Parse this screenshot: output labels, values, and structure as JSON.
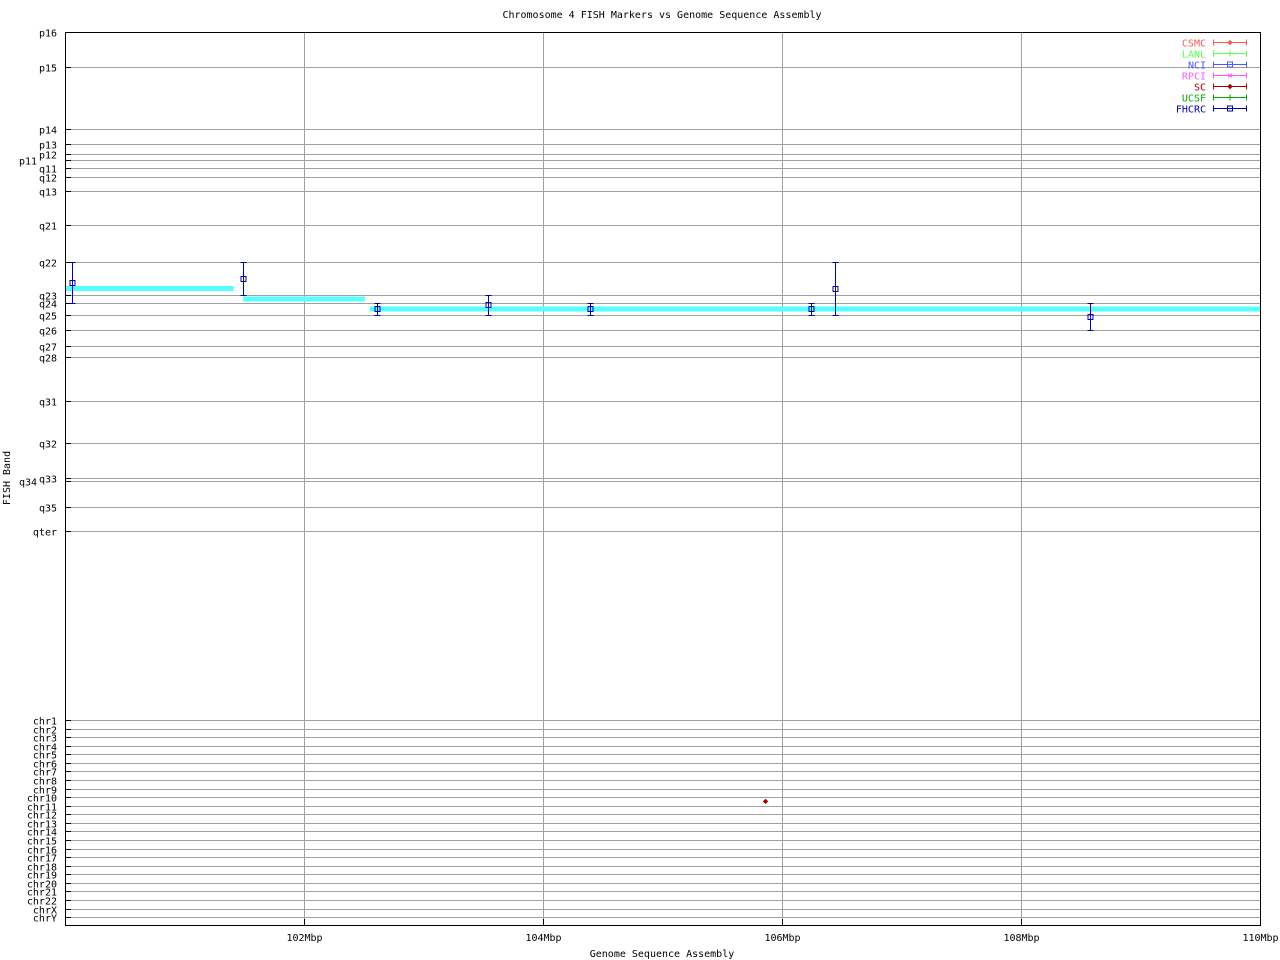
{
  "chart_data": {
    "type": "scatter",
    "title": "Chromosome 4 FISH Markers vs Genome Sequence Assembly",
    "xlabel": "Genome Sequence Assembly",
    "ylabel": "FISH Band",
    "xlim": [
      100,
      110
    ],
    "x_unit": "Mbp",
    "x_ticks": [
      "102Mbp",
      "104Mbp",
      "106Mbp",
      "108Mbp",
      "110Mbp"
    ],
    "y_ticks": [
      "p16",
      "p15",
      "p14",
      "p13",
      "p12",
      "p11",
      "q11",
      "q12",
      "q13",
      "q21",
      "q22",
      "q23",
      "q24",
      "q25",
      "q26",
      "q27",
      "q28",
      "q31",
      "q32",
      "q33",
      "q34",
      "q35",
      "qter",
      "chr1",
      "chr2",
      "chr3",
      "chr4",
      "chr5",
      "chr6",
      "chr7",
      "chr8",
      "chr9",
      "chr10",
      "chr11",
      "chr12",
      "chr13",
      "chr14",
      "chr15",
      "chr16",
      "chr17",
      "chr18",
      "chr19",
      "chr20",
      "chr21",
      "chr22",
      "chrX",
      "chrY"
    ],
    "grid": true,
    "legend_position": "top-right",
    "legend": [
      {
        "name": "CSMC",
        "color": "#ff5555",
        "symbol": "diamond"
      },
      {
        "name": "LANL",
        "color": "#55ff55",
        "symbol": "plus"
      },
      {
        "name": "NCI",
        "color": "#5555ff",
        "symbol": "square"
      },
      {
        "name": "RPCI",
        "color": "#ff55ff",
        "symbol": "cross"
      },
      {
        "name": "SC",
        "color": "#aa0000",
        "symbol": "diamond"
      },
      {
        "name": "UCSF",
        "color": "#00aa00",
        "symbol": "plus"
      },
      {
        "name": "FHCRC",
        "color": "#0000aa",
        "symbol": "square"
      }
    ],
    "series": [
      {
        "name": "FHCRC",
        "color": "#0000aa",
        "points": [
          {
            "x": 100.06,
            "band_low": "q22",
            "band_high": "q24"
          },
          {
            "x": 101.49,
            "band_low": "q22",
            "band_high": "q23"
          },
          {
            "x": 102.61,
            "band_low": "q24",
            "band_high": "q25"
          },
          {
            "x": 103.54,
            "band_low": "q23",
            "band_high": "q25"
          },
          {
            "x": 104.39,
            "band_low": "q24",
            "band_high": "q25"
          },
          {
            "x": 106.24,
            "band_low": "q24",
            "band_high": "q25"
          },
          {
            "x": 106.44,
            "band_low": "q22",
            "band_high": "q25"
          },
          {
            "x": 108.58,
            "band_low": "q24",
            "band_high": "q26"
          }
        ]
      },
      {
        "name": "SC",
        "color": "#aa0000",
        "points": [
          {
            "x": 105.86,
            "band_low": "chr10",
            "band_high": "chr11"
          }
        ]
      }
    ],
    "band_segments": {
      "color": "#55ffff",
      "segments": [
        {
          "x_start": 100.0,
          "x_end": 101.41,
          "band_low": "q22",
          "band_high": "q25"
        },
        {
          "x_start": 101.49,
          "x_end": 102.51,
          "band_low": "q23",
          "band_high": "q24"
        },
        {
          "x_start": 102.55,
          "x_end": 110.0,
          "band_low": "q24",
          "band_high": "q25"
        }
      ]
    }
  }
}
